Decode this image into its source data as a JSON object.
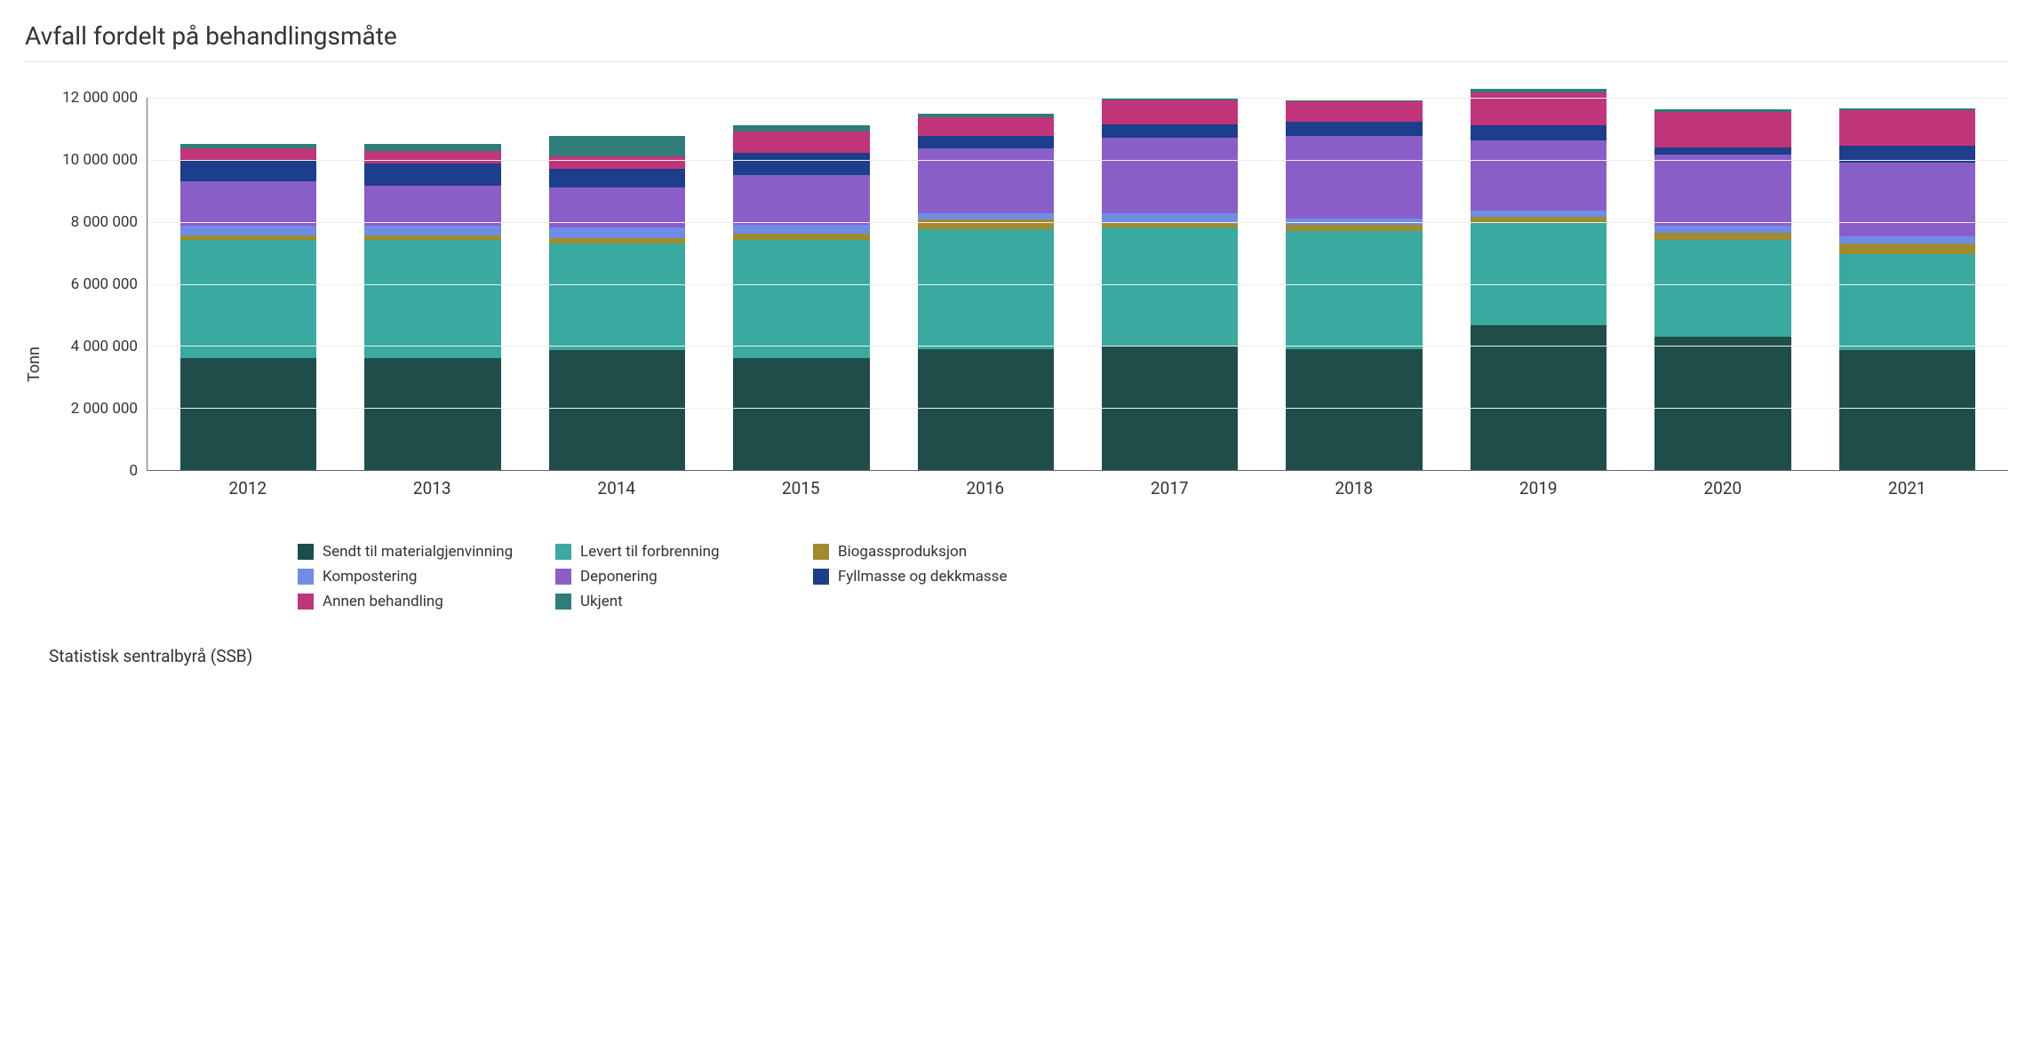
{
  "chart": {
    "type": "stacked-bar",
    "title": "Avfall fordelt på behandlingsmåte",
    "ylabel": "Tonn",
    "source": "Statistisk sentralbyrå (SSB)",
    "background_color": "#ffffff",
    "grid_color": "#eeeeee",
    "axis_color": "#666666",
    "text_color": "#333333",
    "title_fontsize": 28,
    "axis_fontsize": 17,
    "xaxis_fontsize": 19,
    "legend_fontsize": 17,
    "ylabel_fontsize": 18,
    "source_fontsize": 19,
    "ylim": [
      0,
      12000000
    ],
    "ytick_step": 2000000,
    "yticks": [
      "12 000 000",
      "10 000 000",
      "8 000 000",
      "6 000 000",
      "4 000 000",
      "2 000 000",
      "0"
    ],
    "bar_width": 0.74,
    "categories": [
      "2012",
      "2013",
      "2014",
      "2015",
      "2016",
      "2017",
      "2018",
      "2019",
      "2020",
      "2021"
    ],
    "series": [
      {
        "key": "s1",
        "label": "Sendt til materialgjenvinning",
        "color": "#1f4e4a"
      },
      {
        "key": "s2",
        "label": "Levert til forbrenning",
        "color": "#3aa99f"
      },
      {
        "key": "s3",
        "label": "Biogassproduksjon",
        "color": "#a08b2e"
      },
      {
        "key": "s4",
        "label": "Kompostering",
        "color": "#6f8de6"
      },
      {
        "key": "s5",
        "label": "Deponering",
        "color": "#8a5ec9"
      },
      {
        "key": "s6",
        "label": "Fyllmasse og dekkmasse",
        "color": "#1d3e8a"
      },
      {
        "key": "s7",
        "label": "Annen behandling",
        "color": "#c0347a"
      },
      {
        "key": "s8",
        "label": "Ukjent",
        "color": "#2e7d78"
      }
    ],
    "values": {
      "s1": [
        3600000,
        3600000,
        3850000,
        3600000,
        3900000,
        4000000,
        3900000,
        4650000,
        4300000,
        3850000
      ],
      "s2": [
        3800000,
        3800000,
        3450000,
        3800000,
        3850000,
        3800000,
        3800000,
        3300000,
        3100000,
        3100000
      ],
      "s3": [
        150000,
        150000,
        150000,
        200000,
        300000,
        150000,
        200000,
        200000,
        225000,
        350000
      ],
      "s4": [
        300000,
        300000,
        350000,
        300000,
        200000,
        300000,
        200000,
        200000,
        225000,
        225000
      ],
      "s5": [
        1450000,
        1300000,
        1300000,
        1600000,
        2100000,
        2450000,
        2650000,
        2250000,
        2300000,
        2350000
      ],
      "s6": [
        650000,
        700000,
        600000,
        700000,
        400000,
        425000,
        450000,
        500000,
        225000,
        550000
      ],
      "s7": [
        400000,
        400000,
        400000,
        700000,
        600000,
        750000,
        650000,
        1050000,
        1150000,
        1150000
      ],
      "s8": [
        150000,
        250000,
        650000,
        200000,
        100000,
        75000,
        50000,
        100000,
        75000,
        50000
      ]
    }
  }
}
